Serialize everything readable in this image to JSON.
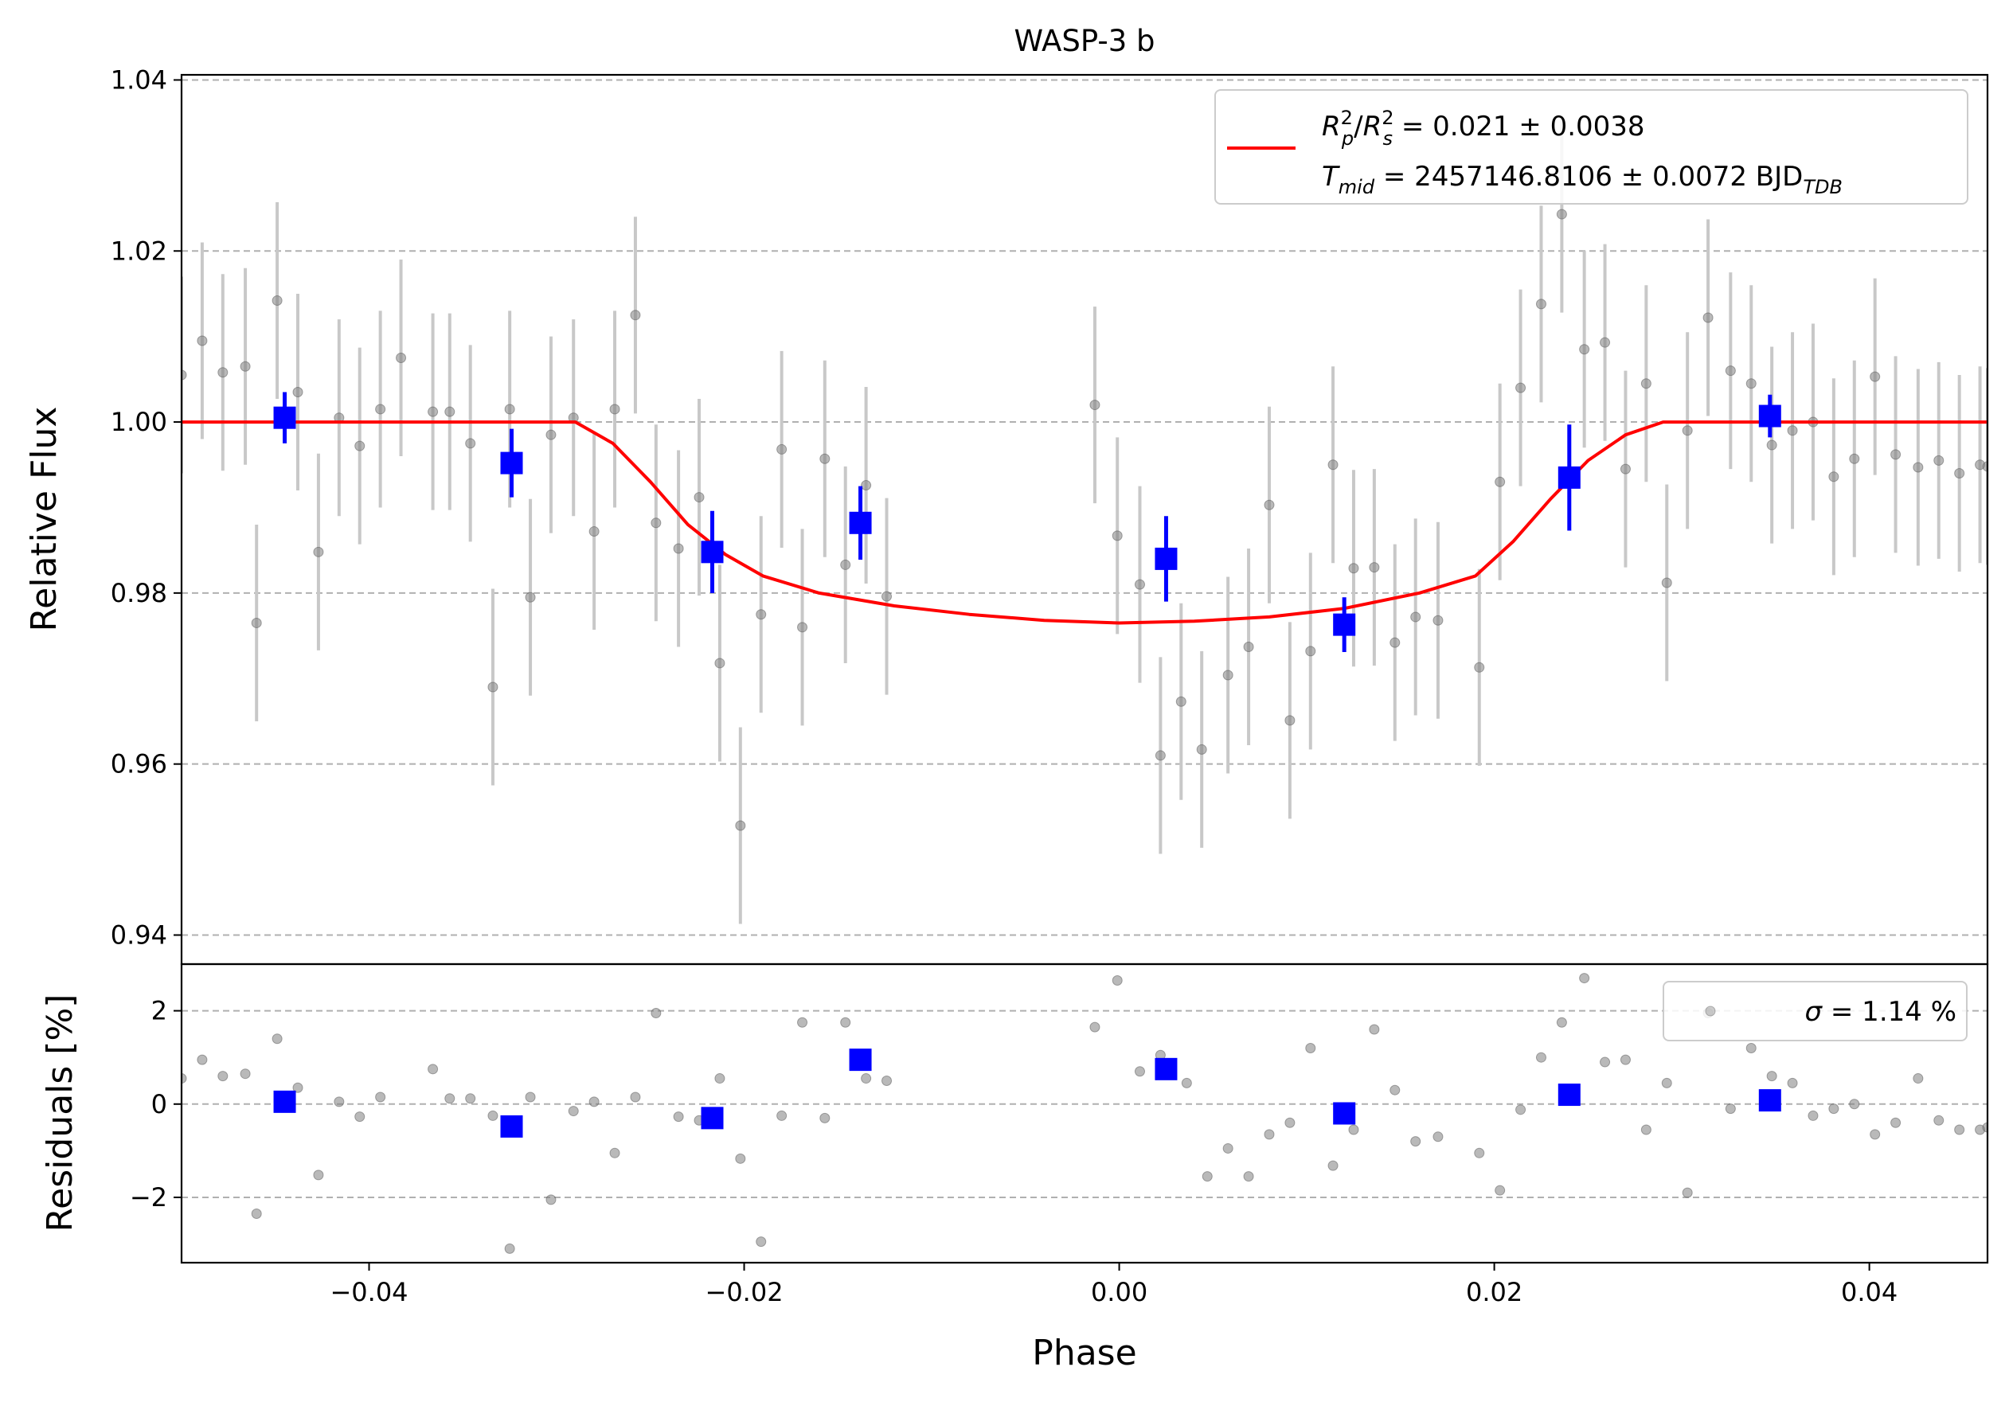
{
  "chart_data": [
    {
      "type": "scatter",
      "panel": "light-curve",
      "title": "WASP-3 b",
      "xlabel": "",
      "ylabel": "Relative Flux",
      "xlim": [
        -0.05,
        0.0463
      ],
      "ylim": [
        0.9366,
        1.0406
      ],
      "yticks": [
        "0.94",
        "0.96",
        "0.98",
        "1.00",
        "1.02",
        "1.04"
      ],
      "ytick_values": [
        0.94,
        0.96,
        0.98,
        1.0,
        1.02,
        1.04
      ],
      "grid": "horizontal dashed",
      "legend_position": "top-right",
      "legend": {
        "line1": {
          "sym1": "R",
          "sub1": "p",
          "sup1": "2",
          "slash": "/",
          "sym2": "R",
          "sub2": "s",
          "sup2": "2",
          "value": " = 0.021 ± 0.0038"
        },
        "line2": {
          "sym": "T",
          "sub": "mid",
          "value": " = 2457146.8106 ± 0.0072 BJD",
          "unit_sub": "TDB"
        }
      },
      "colors": {
        "raw": "#808080",
        "raw_err": "#c8c8c8",
        "binned": "#0000ff",
        "model": "#ff0000",
        "grid": "#b0b0b0"
      },
      "series": [
        {
          "role": "raw",
          "x": [
            -0.05,
            -0.0489,
            -0.0478,
            -0.0466,
            -0.046,
            -0.0449,
            -0.0438,
            -0.0427,
            -0.0416,
            -0.0405,
            -0.0394,
            -0.0383,
            -0.0366,
            -0.0357,
            -0.0346,
            -0.0334,
            -0.0325,
            -0.0314,
            -0.0303,
            -0.0291,
            -0.028,
            -0.0269,
            -0.0258,
            -0.0247,
            -0.0235,
            -0.0224,
            -0.0213,
            -0.0202,
            -0.0191,
            -0.018,
            -0.0169,
            -0.0157,
            -0.0146,
            -0.0135,
            -0.0124,
            -0.0013,
            -0.0001,
            0.0011,
            0.0022,
            0.0033,
            0.0044,
            0.0058,
            0.0069,
            0.008,
            0.0091,
            0.0102,
            0.0114,
            0.0125,
            0.0136,
            0.0147,
            0.0158,
            0.017,
            0.0192,
            0.0203,
            0.0214,
            0.0225,
            0.0236,
            0.0248,
            0.0259,
            0.027,
            0.0281,
            0.0292,
            0.0303,
            0.0314,
            0.0326,
            0.0337,
            0.0348,
            0.0359,
            0.037,
            0.0381,
            0.0392,
            0.0403,
            0.0414,
            0.0426,
            0.0437,
            0.0448,
            0.0459,
            0.0463
          ],
          "y": [
            1.0055,
            1.0095,
            1.0058,
            1.0065,
            0.9765,
            1.0142,
            1.0035,
            0.9848,
            1.0005,
            0.9972,
            1.0015,
            1.0075,
            1.0012,
            1.0012,
            0.9975,
            0.969,
            1.0015,
            0.9795,
            0.9985,
            1.0005,
            0.9872,
            1.0015,
            1.0125,
            0.9882,
            0.9852,
            0.9912,
            0.9718,
            0.9528,
            0.9775,
            0.9968,
            0.976,
            0.9957,
            0.9833,
            0.9926,
            0.9796,
            1.002,
            0.9867,
            0.981,
            0.961,
            0.9673,
            0.9617,
            0.9704,
            0.9737,
            0.9903,
            0.9651,
            0.9732,
            0.995,
            0.9829,
            0.983,
            0.9742,
            0.9772,
            0.9768,
            0.9713,
            0.993,
            1.004,
            1.0138,
            1.0243,
            1.0085,
            1.0093,
            0.9945,
            1.0045,
            0.9812,
            0.999,
            1.0122,
            1.006,
            1.0045,
            0.9973,
            0.999,
            1.0,
            0.9936,
            0.9957,
            1.0053,
            0.9962,
            0.9947,
            0.9955,
            0.994,
            0.995,
            0.9948
          ],
          "err": [
            0.0115,
            0.0115,
            0.0115,
            0.0115,
            0.0115,
            0.0115,
            0.0115,
            0.0115,
            0.0115,
            0.0115,
            0.0115,
            0.0115,
            0.0115,
            0.0115,
            0.0115,
            0.0115,
            0.0115,
            0.0115,
            0.0115,
            0.0115,
            0.0115,
            0.0115,
            0.0115,
            0.0115,
            0.0115,
            0.0115,
            0.0115,
            0.0115,
            0.0115,
            0.0115,
            0.0115,
            0.0115,
            0.0115,
            0.0115,
            0.0115,
            0.0115,
            0.0115,
            0.0115,
            0.0115,
            0.0115,
            0.0115,
            0.0115,
            0.0115,
            0.0115,
            0.0115,
            0.0115,
            0.0115,
            0.0115,
            0.0115,
            0.0115,
            0.0115,
            0.0115,
            0.0115,
            0.0115,
            0.0115,
            0.0115,
            0.0115,
            0.0115,
            0.0115,
            0.0115,
            0.0115,
            0.0115,
            0.0115,
            0.0115,
            0.0115,
            0.0115,
            0.0115,
            0.0115,
            0.0115,
            0.0115,
            0.0115,
            0.0115,
            0.0115,
            0.0115,
            0.0115,
            0.0115,
            0.0115,
            0.0115
          ]
        },
        {
          "role": "binned",
          "x": [
            -0.0445,
            -0.0324,
            -0.0217,
            -0.0138,
            0.0025,
            0.012,
            0.024,
            0.0347
          ],
          "y": [
            1.0005,
            0.9952,
            0.9848,
            0.9882,
            0.984,
            0.9763,
            0.9935,
            1.0007
          ],
          "err": [
            0.003,
            0.004,
            0.0048,
            0.0043,
            0.005,
            0.0032,
            0.0062,
            0.0025
          ]
        },
        {
          "role": "model",
          "x": [
            -0.05,
            -0.029,
            -0.027,
            -0.025,
            -0.023,
            -0.021,
            -0.019,
            -0.016,
            -0.012,
            -0.008,
            -0.004,
            0.0,
            0.004,
            0.008,
            0.012,
            0.016,
            0.019,
            0.021,
            0.023,
            0.025,
            0.027,
            0.029,
            0.0463
          ],
          "y": [
            1.0,
            1.0,
            0.9975,
            0.993,
            0.988,
            0.9845,
            0.982,
            0.98,
            0.9785,
            0.9775,
            0.9768,
            0.9765,
            0.9767,
            0.9772,
            0.9782,
            0.98,
            0.982,
            0.986,
            0.991,
            0.9955,
            0.9985,
            1.0,
            1.0
          ]
        }
      ]
    },
    {
      "type": "scatter",
      "panel": "residuals",
      "xlabel": "Phase",
      "ylabel": "Residuals [%]",
      "xlim": [
        -0.05,
        0.0463
      ],
      "ylim": [
        -3.4,
        3.0
      ],
      "xticks": [
        "−0.04",
        "−0.02",
        "0.00",
        "0.02",
        "0.04"
      ],
      "xtick_values": [
        -0.04,
        -0.02,
        0.0,
        0.02,
        0.04
      ],
      "yticks": [
        "−2",
        "0",
        "2"
      ],
      "ytick_values": [
        -2,
        0,
        2
      ],
      "grid": "horizontal dashed",
      "legend_position": "top-right",
      "legend": {
        "sym": "σ",
        "value": " = 1.14 %"
      },
      "series": [
        {
          "role": "raw",
          "x": [
            -0.05,
            -0.0489,
            -0.0478,
            -0.0466,
            -0.046,
            -0.0449,
            -0.0438,
            -0.0427,
            -0.0416,
            -0.0405,
            -0.0394,
            -0.0366,
            -0.0357,
            -0.0346,
            -0.0334,
            -0.0325,
            -0.0314,
            -0.0303,
            -0.0291,
            -0.028,
            -0.0269,
            -0.0258,
            -0.0247,
            -0.0235,
            -0.0224,
            -0.0213,
            -0.0202,
            -0.0191,
            -0.018,
            -0.0169,
            -0.0157,
            -0.0146,
            -0.0135,
            -0.0124,
            -0.0013,
            -0.0001,
            0.0011,
            0.0022,
            0.0036,
            0.0047,
            0.0058,
            0.0069,
            0.008,
            0.0091,
            0.0102,
            0.0114,
            0.0125,
            0.0136,
            0.0147,
            0.0158,
            0.017,
            0.0192,
            0.0203,
            0.0214,
            0.0225,
            0.0236,
            0.0248,
            0.0259,
            0.027,
            0.0281,
            0.0292,
            0.0303,
            0.0314,
            0.0326,
            0.0337,
            0.0348,
            0.0359,
            0.037,
            0.0381,
            0.0392,
            0.0403,
            0.0414,
            0.0426,
            0.0437,
            0.0448,
            0.0459,
            0.0463
          ],
          "y": [
            0.55,
            0.95,
            0.6,
            0.65,
            -2.35,
            1.4,
            0.35,
            -1.52,
            0.05,
            -0.27,
            0.15,
            0.75,
            0.12,
            0.12,
            -0.25,
            -3.1,
            0.15,
            -2.05,
            -0.15,
            0.05,
            -1.05,
            0.15,
            1.95,
            -0.27,
            -0.35,
            0.55,
            -1.17,
            -2.95,
            -0.25,
            1.75,
            -0.3,
            1.75,
            0.55,
            0.5,
            1.65,
            2.65,
            0.7,
            1.05,
            0.45,
            -1.55,
            -0.95,
            -1.55,
            -0.65,
            -0.4,
            1.2,
            -1.32,
            -0.55,
            1.6,
            0.3,
            -0.8,
            -0.7,
            -1.05,
            -1.85,
            -0.12,
            1.0,
            1.75,
            2.7,
            0.9,
            0.95,
            -0.55,
            0.45,
            -1.9,
            1.95,
            -0.1,
            1.2,
            0.6,
            0.45,
            -0.25,
            -0.1,
            0.0,
            -0.65,
            -0.4,
            0.55,
            -0.35,
            -0.55,
            -0.55,
            -0.5
          ],
          "err": []
        },
        {
          "role": "binned",
          "x": [
            -0.0445,
            -0.0324,
            -0.0217,
            -0.0138,
            0.0025,
            0.012,
            0.024,
            0.0347
          ],
          "y": [
            0.05,
            -0.48,
            -0.3,
            0.95,
            0.75,
            -0.2,
            0.2,
            0.08
          ],
          "err": []
        }
      ]
    }
  ]
}
